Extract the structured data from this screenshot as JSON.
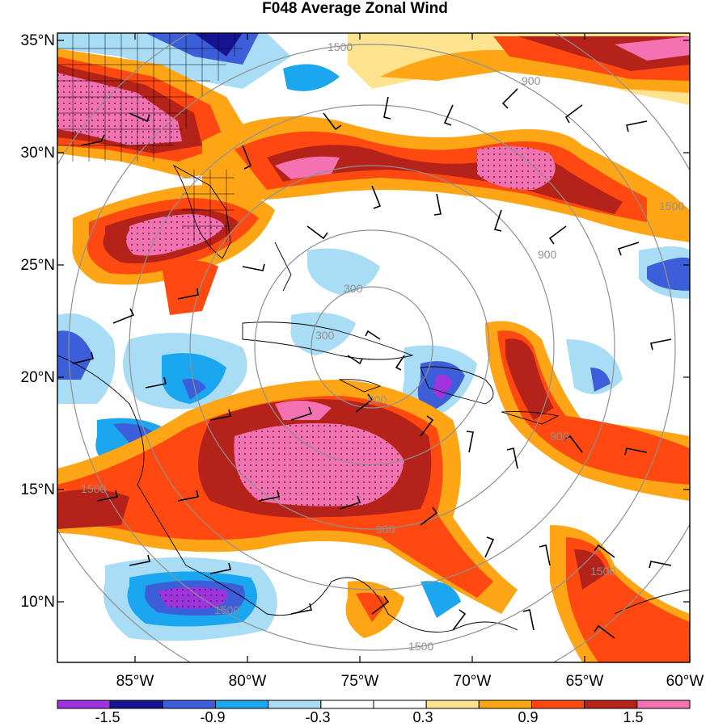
{
  "title": "F048 Average Zonal Wind",
  "lat_labels": [
    "35°N",
    "30°N",
    "25°N",
    "20°N",
    "15°N",
    "10°N"
  ],
  "lon_labels": [
    "85°W",
    "80°W",
    "75°W",
    "70°W",
    "65°W",
    "60°W"
  ],
  "colorbar": {
    "colors": [
      "#a033e0",
      "#151594",
      "#3c5fd9",
      "#1ba6f0",
      "#a9ddf5",
      "#ffffff",
      "#ffffff",
      "#ffe38f",
      "#ffa516",
      "#ff4910",
      "#b42219",
      "#f471b2"
    ],
    "labels": [
      "-1.5",
      "-0.9",
      "-0.3",
      "0.3",
      "0.9",
      "1.5"
    ]
  },
  "range_ring_labels": [
    "1500",
    "900",
    "300",
    "900",
    "1500",
    "900",
    "300",
    "900",
    "1500",
    "1500",
    "900",
    "1500",
    "1500"
  ],
  "map_extent": {
    "lon": [
      -88,
      -60
    ],
    "lat": [
      7.5,
      35.5
    ]
  }
}
